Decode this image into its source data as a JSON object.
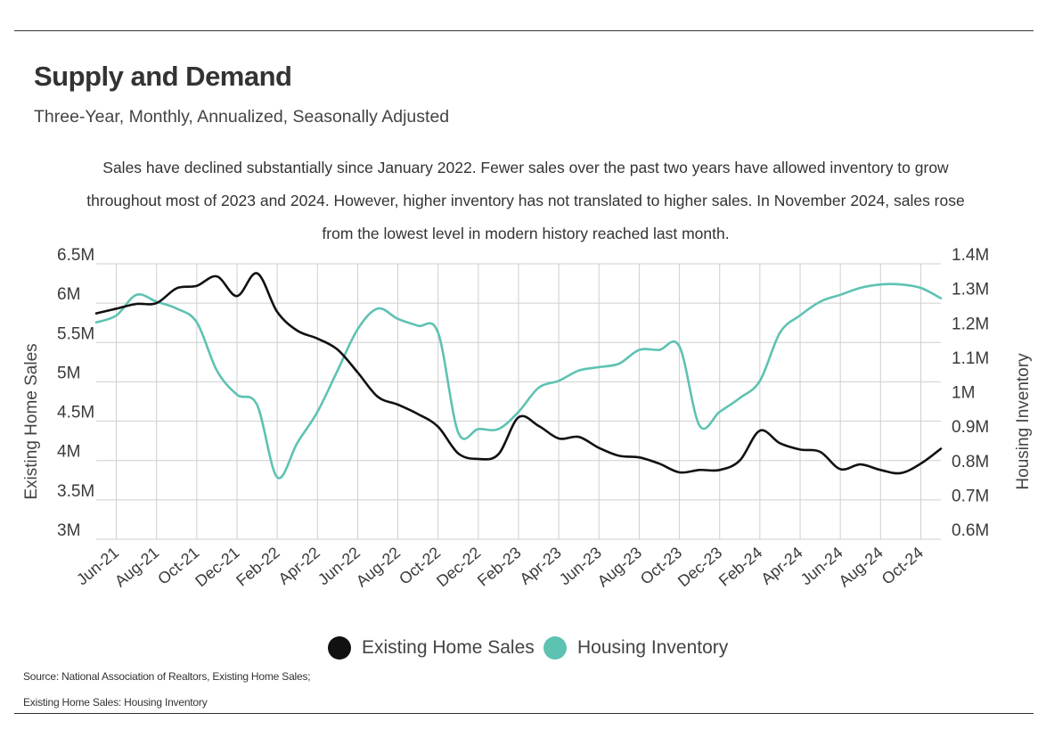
{
  "header": {
    "title": "Supply and Demand",
    "subtitle": "Three-Year, Monthly, Annualized, Seasonally Adjusted",
    "description": "Sales have declined substantially since January 2022. Fewer sales over the past two years have allowed inventory to grow throughout most of 2023 and 2024. However, higher inventory has not translated to higher sales. In November 2024, sales rose from the lowest level in modern history reached last month."
  },
  "source": {
    "line1": "Source:  National Association of Realtors, Existing Home Sales;",
    "line2": "Existing Home Sales: Housing Inventory"
  },
  "colors": {
    "sales": "#111111",
    "inventory": "#5ec2b2",
    "grid": "#cfcfcf",
    "text": "#3a3a3a"
  },
  "chart_data": {
    "type": "line",
    "title": "Supply and Demand",
    "x": [
      "May-21",
      "Jun-21",
      "Jul-21",
      "Aug-21",
      "Sep-21",
      "Oct-21",
      "Nov-21",
      "Dec-21",
      "Jan-22",
      "Feb-22",
      "Mar-22",
      "Apr-22",
      "May-22",
      "Jun-22",
      "Jul-22",
      "Aug-22",
      "Sep-22",
      "Oct-22",
      "Nov-22",
      "Dec-22",
      "Jan-23",
      "Feb-23",
      "Mar-23",
      "Apr-23",
      "May-23",
      "Jun-23",
      "Jul-23",
      "Aug-23",
      "Sep-23",
      "Oct-23",
      "Nov-23",
      "Dec-23",
      "Jan-24",
      "Feb-24",
      "Mar-24",
      "Apr-24",
      "May-24",
      "Jun-24",
      "Jul-24",
      "Aug-24",
      "Sep-24",
      "Oct-24",
      "Nov-24"
    ],
    "x_tick_labels": [
      "Jun-21",
      "Aug-21",
      "Oct-21",
      "Dec-21",
      "Feb-22",
      "Apr-22",
      "Jun-22",
      "Aug-22",
      "Oct-22",
      "Dec-22",
      "Feb-23",
      "Apr-23",
      "Jun-23",
      "Aug-23",
      "Oct-23",
      "Dec-23",
      "Feb-24",
      "Apr-24",
      "Jun-24",
      "Aug-24",
      "Oct-24"
    ],
    "ylabel": "Existing Home Sales",
    "y2label": "Housing Inventory",
    "ylim": [
      3000000,
      6500000
    ],
    "y2lim": [
      600000,
      1400000
    ],
    "y_ticks": [
      "6.5M",
      "6M",
      "5.5M",
      "5M",
      "4.5M",
      "4M",
      "3.5M",
      "3M"
    ],
    "y2_ticks": [
      "1.4M",
      "1.3M",
      "1.2M",
      "1.1M",
      "1M",
      "0.9M",
      "0.8M",
      "0.7M",
      "0.6M"
    ],
    "grid": true,
    "legend": "bottom-center",
    "series": [
      {
        "name": "Existing Home Sales",
        "axis": "left",
        "values": [
          5870000,
          5930000,
          5990000,
          6000000,
          6190000,
          6220000,
          6340000,
          6090000,
          6380000,
          5890000,
          5650000,
          5550000,
          5410000,
          5120000,
          4810000,
          4710000,
          4590000,
          4430000,
          4090000,
          4020000,
          4080000,
          4550000,
          4440000,
          4280000,
          4300000,
          4160000,
          4060000,
          4040000,
          3960000,
          3850000,
          3880000,
          3880000,
          4000000,
          4380000,
          4220000,
          4140000,
          4110000,
          3890000,
          3950000,
          3880000,
          3840000,
          3960000,
          4150000
        ]
      },
      {
        "name": "Housing Inventory",
        "axis": "right",
        "values": [
          1230000,
          1250000,
          1310000,
          1290000,
          1270000,
          1230000,
          1090000,
          1020000,
          990000,
          780000,
          880000,
          970000,
          1090000,
          1210000,
          1270000,
          1240000,
          1220000,
          1200000,
          910000,
          920000,
          920000,
          970000,
          1040000,
          1060000,
          1090000,
          1100000,
          1110000,
          1150000,
          1150000,
          1160000,
          930000,
          970000,
          1010000,
          1060000,
          1200000,
          1250000,
          1290000,
          1310000,
          1330000,
          1340000,
          1340000,
          1330000,
          1300000
        ]
      }
    ]
  }
}
